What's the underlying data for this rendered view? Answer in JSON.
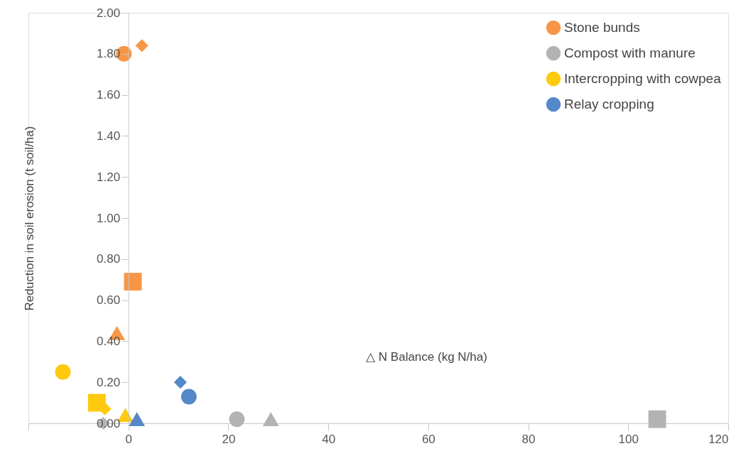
{
  "chart_data": {
    "type": "scatter",
    "xlabel": "△ N Balance (kg N/ha)",
    "ylabel": "Reduction in soil erosion (t soil/ha)",
    "xlim": [
      -20,
      120
    ],
    "xticks": [
      {
        "value": -20,
        "label": null
      },
      0,
      20,
      40,
      60,
      80,
      100,
      120
    ],
    "ylim": [
      0,
      2.0
    ],
    "yticks": [
      {
        "value": 0,
        "label": "0.00"
      },
      {
        "value": 0.2,
        "label": "0.20"
      },
      {
        "value": 0.4,
        "label": "0.40"
      },
      {
        "value": 0.6,
        "label": "0.60"
      },
      {
        "value": 0.8,
        "label": "0.80"
      },
      {
        "value": 1.0,
        "label": "1.00"
      },
      {
        "value": 1.2,
        "label": "1.20"
      },
      {
        "value": 1.4,
        "label": "1.40"
      },
      {
        "value": 1.6,
        "label": "1.60"
      },
      {
        "value": 1.8,
        "label": "1.80"
      },
      {
        "value": 2.0,
        "label": "2.00"
      }
    ],
    "grid": false,
    "legend": "top right",
    "series": [
      {
        "name": "Stone bunds",
        "color": "#f79646",
        "marker": "circle",
        "x": [
          -0.9
        ],
        "values": [
          1.8
        ]
      },
      {
        "color": "#f79646",
        "marker": "diamond",
        "x": [
          2.7
        ],
        "values": [
          1.84
        ]
      },
      {
        "color": "#f79646",
        "marker": "square",
        "x": [
          0.9
        ],
        "values": [
          0.69
        ]
      },
      {
        "color": "#f79646",
        "marker": "triangle",
        "x": [
          -2.3
        ],
        "values": [
          0.44
        ]
      },
      {
        "name": "Compost with manure",
        "color": "#b3b3b3",
        "marker": "circle",
        "x": [
          21.7
        ],
        "values": [
          0.02
        ]
      },
      {
        "color": "#b3b3b3",
        "marker": "triangle",
        "x": [
          28.5
        ],
        "values": [
          0.02
        ]
      },
      {
        "color": "#b3b3b3",
        "marker": "square",
        "x": [
          105.8
        ],
        "values": [
          0.02
        ]
      },
      {
        "color": "#b3b3b3",
        "marker": "diamond",
        "x": [
          -5.0
        ],
        "values": [
          0.0
        ]
      },
      {
        "name": "Intercropping with cowpea",
        "color": "#ffc90e",
        "marker": "circle",
        "x": [
          -13.1
        ],
        "values": [
          0.25
        ]
      },
      {
        "color": "#ffc90e",
        "marker": "square",
        "x": [
          -6.3
        ],
        "values": [
          0.1
        ]
      },
      {
        "color": "#ffc90e",
        "marker": "diamond",
        "x": [
          -4.7
        ],
        "values": [
          0.07
        ]
      },
      {
        "color": "#ffc90e",
        "marker": "triangle",
        "x": [
          -0.6
        ],
        "values": [
          0.04
        ]
      },
      {
        "name": "Relay cropping",
        "color": "#5588c8",
        "marker": "circle",
        "x": [
          12.1
        ],
        "values": [
          0.13
        ]
      },
      {
        "color": "#5588c8",
        "marker": "diamond",
        "x": [
          10.4
        ],
        "values": [
          0.2
        ]
      },
      {
        "color": "#5588c8",
        "marker": "triangle",
        "x": [
          1.7
        ],
        "values": [
          0.02
        ]
      }
    ]
  }
}
